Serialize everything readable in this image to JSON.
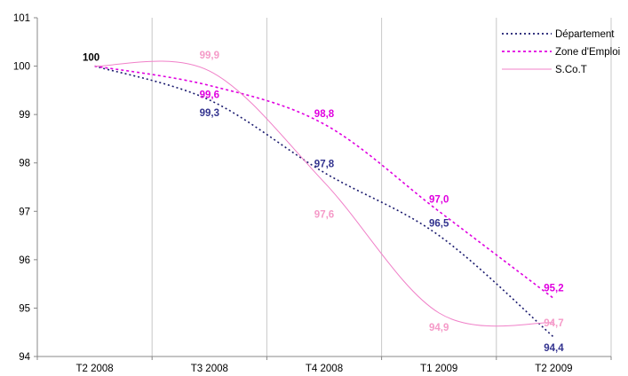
{
  "chart_data": {
    "type": "line",
    "categories": [
      "T2 2008",
      "T3 2008",
      "T4 2008",
      "T1 2009",
      "T2 2009"
    ],
    "ylim": [
      94,
      101
    ],
    "yticks": [
      94,
      95,
      96,
      97,
      98,
      99,
      100,
      101
    ],
    "grid": {
      "vertical": true,
      "horizontal": false
    },
    "legend_position": "top-right",
    "series": [
      {
        "name": "Département",
        "values": [
          100,
          99.3,
          97.8,
          96.5,
          94.4
        ],
        "labels": [
          "",
          "99,3",
          "97,8",
          "96,5",
          "94,4"
        ],
        "color": "#1a1a6e",
        "label_color": "#33338f",
        "style": "dotted"
      },
      {
        "name": "Zone d'Emploi",
        "values": [
          100,
          99.6,
          98.8,
          97.0,
          95.2
        ],
        "labels": [
          "100",
          "99,6",
          "98,8",
          "97,0",
          "95,2"
        ],
        "color": "#e000e0",
        "label_color": "#e000e0",
        "style": "dashed"
      },
      {
        "name": "S.Co.T",
        "values": [
          100,
          99.9,
          97.6,
          94.9,
          94.7
        ],
        "labels": [
          "",
          "99,9",
          "97,6",
          "94,9",
          "94,7"
        ],
        "color": "#f080c8",
        "label_color": "#f59ac8",
        "style": "solid"
      }
    ]
  }
}
